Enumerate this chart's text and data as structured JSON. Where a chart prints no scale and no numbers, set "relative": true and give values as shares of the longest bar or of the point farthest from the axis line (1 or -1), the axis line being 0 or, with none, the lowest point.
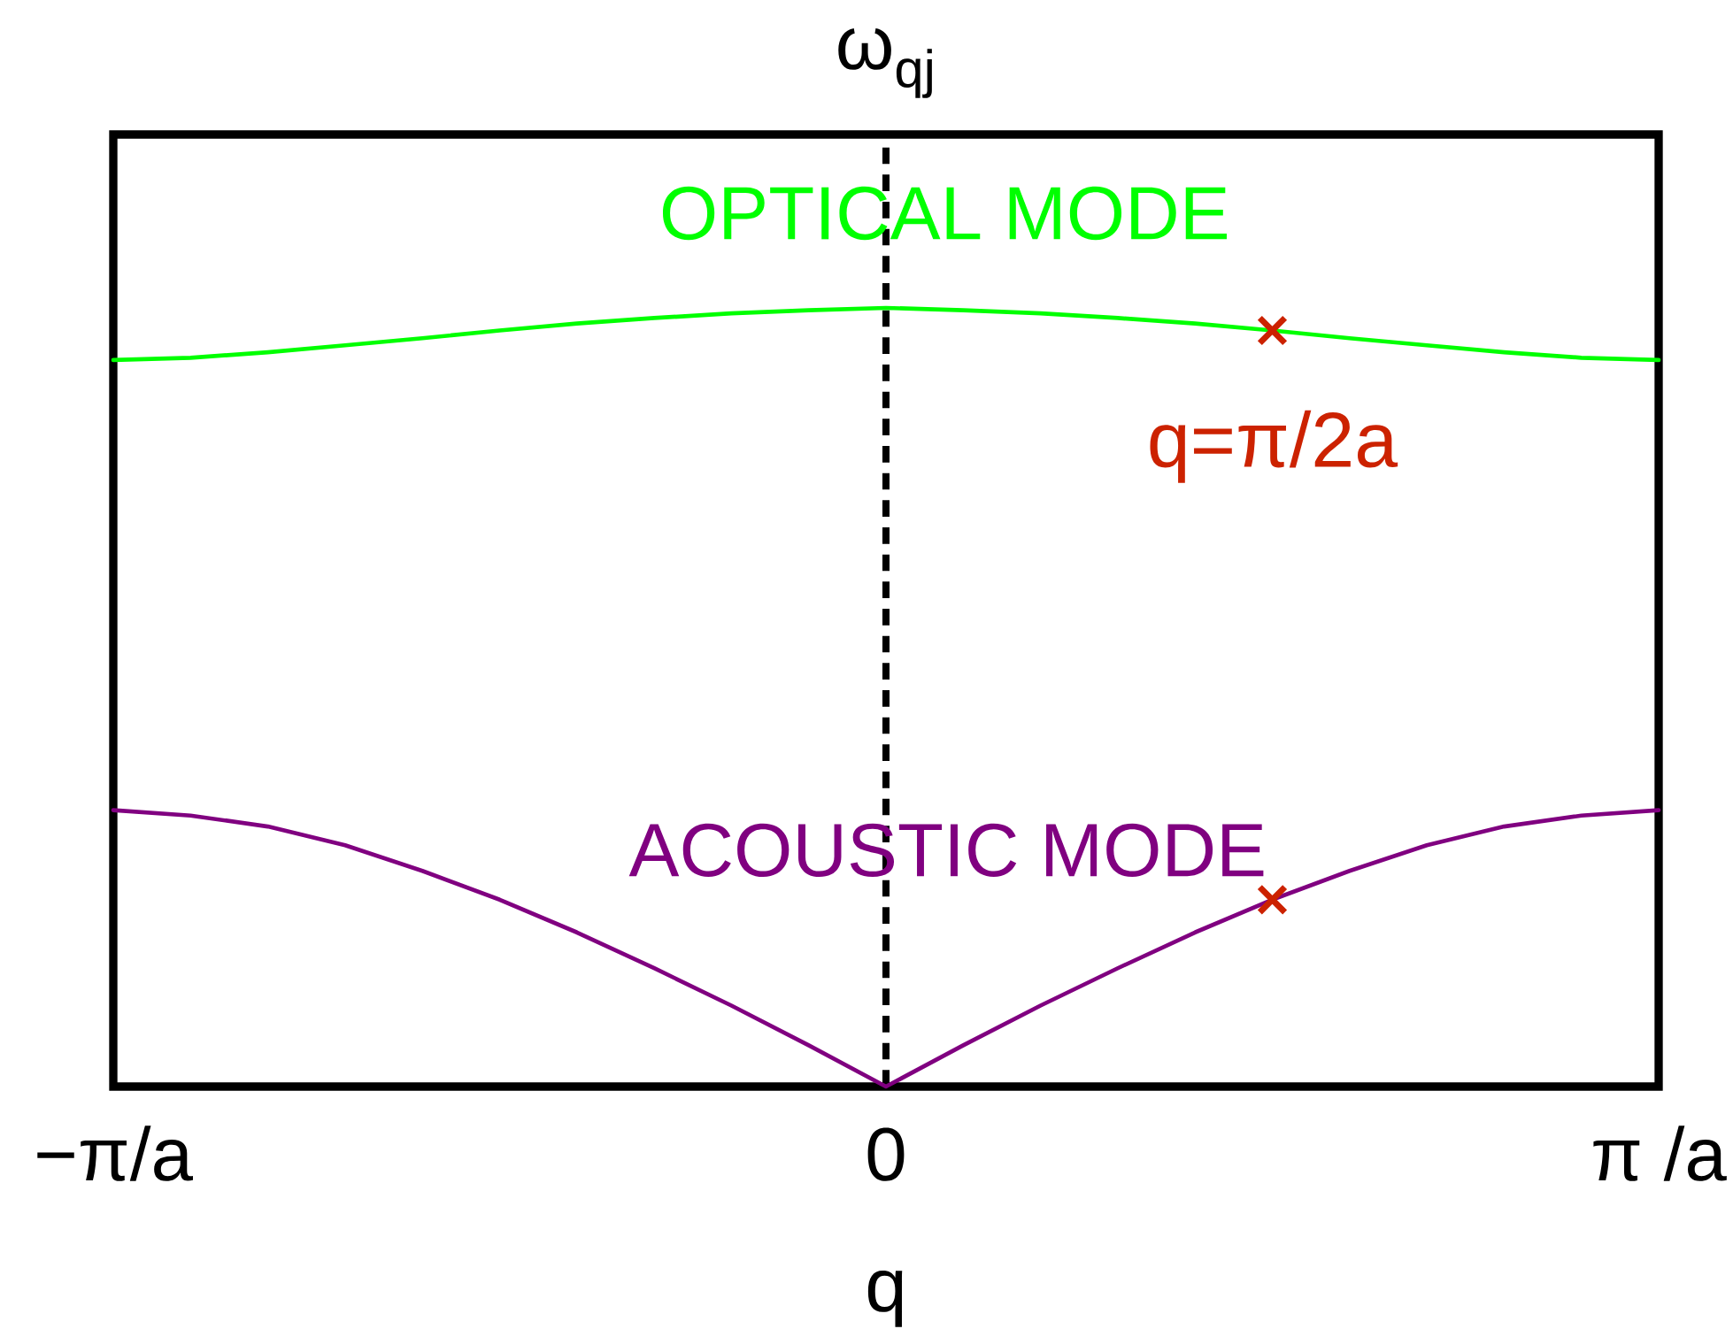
{
  "chart_data": {
    "type": "line",
    "xlabel": "q",
    "ylabel": "ω$_{qj}$",
    "relative": true,
    "categories": [
      "−π/a",
      null,
      null,
      null,
      null,
      null,
      null,
      null,
      null,
      null,
      "0",
      null,
      null,
      null,
      null,
      null,
      null,
      null,
      null,
      null,
      "π /a"
    ],
    "series": [
      {
        "name": "OPTICAL MODE",
        "color": "#00ff00",
        "values": [
          0.933,
          0.936,
          0.943,
          0.952,
          0.961,
          0.971,
          0.98,
          0.987,
          0.993,
          0.997,
          1,
          0.997,
          0.993,
          0.987,
          0.98,
          0.971,
          0.961,
          0.952,
          0.943,
          0.936,
          0.933
        ]
      },
      {
        "name": "ACOUSTIC MODE",
        "color": "#800080",
        "values": [
          0.355,
          0.348,
          0.334,
          0.31,
          0.277,
          0.24,
          0.198,
          0.152,
          0.104,
          0.053,
          0,
          0.053,
          0.104,
          0.152,
          0.198,
          0.24,
          0.277,
          0.31,
          0.334,
          0.348,
          0.355
        ]
      },
      {
        "type": "scatter",
        "color": "#cc2200",
        "marker": "cross",
        "values": [
          null,
          null,
          null,
          null,
          null,
          null,
          null,
          null,
          null,
          null,
          null,
          null,
          null,
          null,
          null,
          0.971,
          null,
          null,
          null,
          null,
          null
        ]
      },
      {
        "type": "scatter",
        "color": "#cc2200",
        "marker": "cross",
        "values": [
          null,
          null,
          null,
          null,
          null,
          null,
          null,
          null,
          null,
          null,
          null,
          null,
          null,
          null,
          null,
          0.24,
          null,
          null,
          null,
          null,
          null
        ]
      }
    ],
    "ref_lines": [
      {
        "axis": "x",
        "value": "0",
        "color": "#000000",
        "line_style": "dashed"
      }
    ],
    "annotations": [
      "q=π/2a"
    ]
  }
}
